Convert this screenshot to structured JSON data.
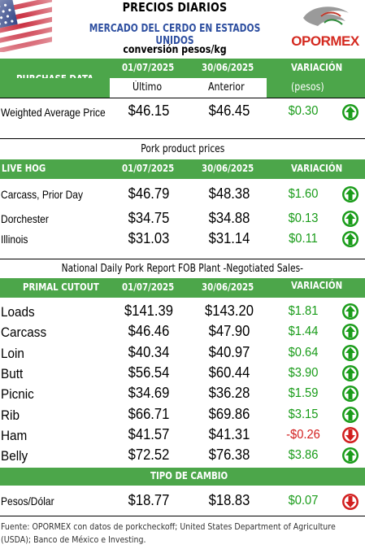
{
  "header": {
    "title": "PRECIOS DIARIOS",
    "subtitle": "MERCADO DEL CERDO EN ESTADOS UNIDOS",
    "units": "conversión pesos/kg",
    "logo_text": "OPORMEX"
  },
  "purchase": {
    "label": "PURCHASE DATA",
    "date1": "01/07/2025",
    "date2": "30/06/2025",
    "var_label": "VARIACIÓN",
    "col1_sub": "Último",
    "col2_sub": "Anterior",
    "var_sub": "(pesos)",
    "rows": [
      {
        "label": "Weighted Average Price",
        "v1": "$46.15",
        "v2": "$46.45",
        "var": "$0.30",
        "trend": "up"
      }
    ]
  },
  "pork_product": {
    "caption": "Pork product prices",
    "label": "LIVE HOG",
    "date1": "01/07/2025",
    "date2": "30/06/2025",
    "var_label": "VARIACIÓN",
    "rows": [
      {
        "label": "Carcass, Prior Day",
        "v1": "$46.79",
        "v2": "$48.38",
        "var": "$1.60",
        "trend": "up"
      },
      {
        "label": "Dorchester",
        "v1": "$34.75",
        "v2": "$34.88",
        "var": "$0.13",
        "trend": "up"
      },
      {
        "label": "Illinois",
        "v1": "$31.03",
        "v2": "$31.14",
        "var": "$0.11",
        "trend": "up"
      }
    ]
  },
  "primal": {
    "caption": "National Daily Pork Report FOB Plant -Negotiated Sales-",
    "label": "PRIMAL CUTOUT",
    "date1": "01/07/2025",
    "date2": "30/06/2025",
    "var_label": "VARIACIÓN",
    "rows": [
      {
        "label": "Loads",
        "v1": "$141.39",
        "v2": "$143.20",
        "var": "$1.81",
        "trend": "up"
      },
      {
        "label": "Carcass",
        "v1": "$46.46",
        "v2": "$47.90",
        "var": "$1.44",
        "trend": "up"
      },
      {
        "label": "Loin",
        "v1": "$40.34",
        "v2": "$40.97",
        "var": "$0.64",
        "trend": "up"
      },
      {
        "label": "Butt",
        "v1": "$56.54",
        "v2": "$60.44",
        "var": "$3.90",
        "trend": "up"
      },
      {
        "label": "Picnic",
        "v1": "$34.69",
        "v2": "$36.28",
        "var": "$1.59",
        "trend": "up"
      },
      {
        "label": "Rib",
        "v1": "$66.71",
        "v2": "$69.86",
        "var": "$3.15",
        "trend": "up"
      },
      {
        "label": "Ham",
        "v1": "$41.57",
        "v2": "$41.31",
        "var": "-$0.26",
        "trend": "down"
      },
      {
        "label": "Belly",
        "v1": "$72.52",
        "v2": "$76.38",
        "var": "$3.86",
        "trend": "up"
      }
    ]
  },
  "exchange": {
    "label": "TIPO DE CAMBIO",
    "rows": [
      {
        "label": "Pesos/Dólar",
        "v1": "$18.77",
        "v2": "$18.83",
        "var": "$0.07",
        "trend": "down"
      }
    ]
  },
  "footer": "Fuente: OPORMEX con datos de porkcheckoff; United States Department of Agriculture (USDA); Banco de México e Investing.",
  "colors": {
    "green_bar": "#4ca64a",
    "positive": "#1a9c1a",
    "negative": "#d21f1f",
    "subtitle_blue": "#2e4fa0"
  },
  "icons": {
    "up": "arrow-up-circle-icon",
    "down": "arrow-down-circle-icon"
  }
}
